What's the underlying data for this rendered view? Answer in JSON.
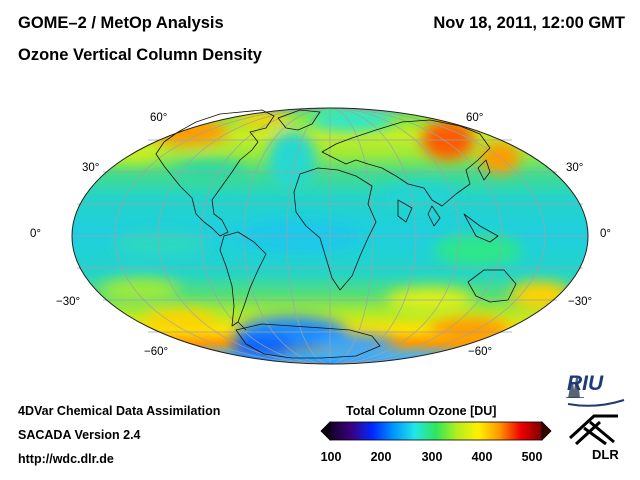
{
  "header": {
    "title": "GOME–2 / MetOp Analysis",
    "subtitle": "Ozone Vertical Column Density",
    "datetime": "Nov 18, 2011, 12:00 GMT"
  },
  "map": {
    "projection": "Mollweide",
    "lat_labels_left": [
      "60°",
      "30°",
      "0°",
      "−30°",
      "−60°"
    ],
    "lat_labels_right": [
      "60°",
      "30°",
      "0°",
      "−30°",
      "−60°"
    ],
    "background": "#ffffff"
  },
  "colorbar": {
    "title": "Total Column Ozone [DU]",
    "ticks": [
      "100",
      "200",
      "300",
      "400",
      "500"
    ],
    "min": 100,
    "max": 500,
    "colors": [
      "#140028",
      "#3a0080",
      "#0028ff",
      "#0096ff",
      "#22e6e6",
      "#2ee65a",
      "#b4ee1e",
      "#fff000",
      "#ff9600",
      "#f00000",
      "#7a0000"
    ]
  },
  "footer": {
    "line1": "4DVar Chemical Data Assimilation",
    "line2": "SACADA Version 2.4",
    "line3": "http://wdc.dlr.de"
  },
  "logos": {
    "riu": "RIU",
    "dlr": "DLR"
  }
}
